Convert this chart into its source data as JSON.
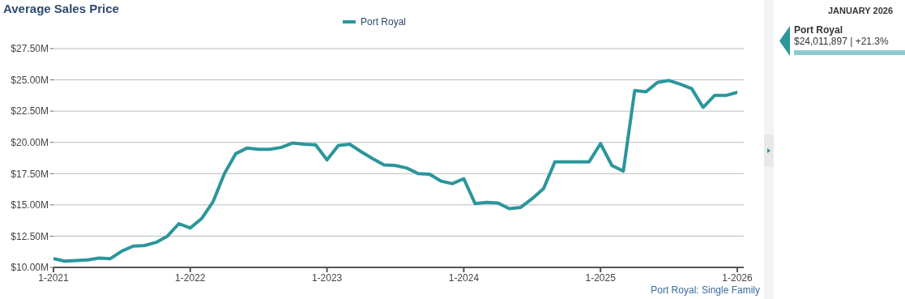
{
  "chart_data": {
    "type": "line",
    "title": "Average Sales Price",
    "categories": [
      "1-2021",
      null,
      null,
      null,
      null,
      null,
      null,
      null,
      null,
      null,
      null,
      null,
      "1-2022",
      null,
      null,
      null,
      null,
      null,
      null,
      null,
      null,
      null,
      null,
      null,
      "1-2023",
      null,
      null,
      null,
      null,
      null,
      null,
      null,
      null,
      null,
      null,
      null,
      "1-2024",
      null,
      null,
      null,
      null,
      null,
      null,
      null,
      null,
      null,
      null,
      null,
      "1-2025",
      null,
      null,
      null,
      null,
      null,
      null,
      null,
      null,
      null,
      null,
      null,
      "1-2026"
    ],
    "series": [
      {
        "name": "Port Royal",
        "color": "#2b969b",
        "values": [
          10.7,
          10.5,
          10.55,
          10.6,
          10.75,
          10.7,
          11.3,
          11.7,
          11.75,
          12.0,
          12.5,
          13.5,
          13.15,
          13.9,
          15.25,
          17.5,
          19.1,
          19.55,
          19.45,
          19.45,
          19.6,
          19.95,
          19.85,
          19.8,
          18.6,
          19.75,
          19.85,
          19.25,
          18.7,
          18.2,
          18.15,
          17.95,
          17.5,
          17.45,
          16.9,
          16.7,
          17.1,
          15.1,
          15.2,
          15.15,
          14.7,
          14.8,
          15.5,
          16.3,
          18.45,
          18.45,
          18.45,
          18.45,
          19.9,
          18.15,
          17.7,
          24.15,
          24.05,
          24.8,
          24.95,
          24.65,
          24.3,
          22.8,
          23.75,
          23.75,
          24.01
        ]
      }
    ],
    "ylim": [
      10,
      27.5
    ],
    "yticks": [
      {
        "value": 10,
        "label": "$10.00M"
      },
      {
        "value": 12.5,
        "label": "$12.50M"
      },
      {
        "value": 15,
        "label": "$15.00M"
      },
      {
        "value": 17.5,
        "label": "$17.50M"
      },
      {
        "value": 20,
        "label": "$20.00M"
      },
      {
        "value": 22.5,
        "label": "$22.50M"
      },
      {
        "value": 25,
        "label": "$25.00M"
      },
      {
        "value": 27.5,
        "label": "$27.50M"
      }
    ],
    "grid": "y",
    "legend": "top",
    "marker": "none",
    "line_style": "solid",
    "annotations": [
      "JANUARY 2026",
      "Port Royal",
      "$24,011,897 | +21.3%",
      "Port Royal: Single Family"
    ]
  }
}
